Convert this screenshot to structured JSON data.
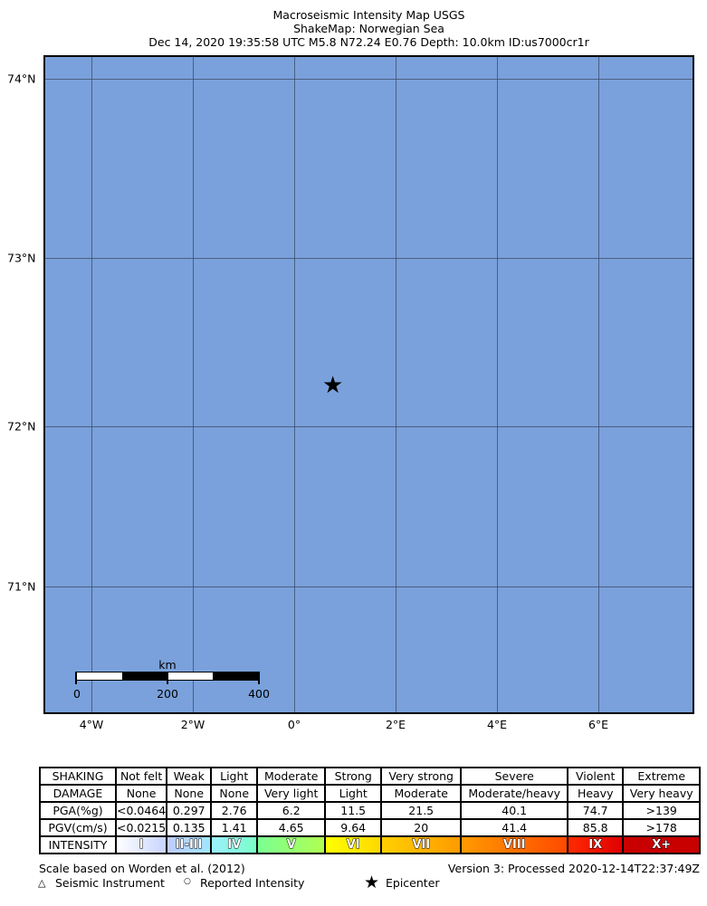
{
  "title": {
    "line1": "Macroseismic Intensity Map USGS",
    "line2": "ShakeMap: Norwegian Sea",
    "line3": "Dec 14, 2020 19:35:58 UTC M5.8 N72.24 E0.76 Depth: 10.0km ID:us7000cr1r"
  },
  "map": {
    "water_color": "#7aa1db",
    "lat_labels": [
      "74°N",
      "73°N",
      "72°N",
      "71°N"
    ],
    "lon_labels": [
      "4°W",
      "2°W",
      "0°",
      "2°E",
      "4°E",
      "6°E"
    ],
    "epicenter": {
      "lat": 72.24,
      "lon": 0.76,
      "icon": "star-icon",
      "symbol": "★"
    },
    "scale_bar": {
      "unit": "km",
      "labels": [
        "0",
        "200",
        "400"
      ]
    }
  },
  "legend": {
    "rows": [
      {
        "header": "SHAKING",
        "cells": [
          "Not felt",
          "Weak",
          "Light",
          "Moderate",
          "Strong",
          "Very strong",
          "Severe",
          "Violent",
          "Extreme"
        ]
      },
      {
        "header": "DAMAGE",
        "cells": [
          "None",
          "None",
          "None",
          "Very light",
          "Light",
          "Moderate",
          "Moderate/heavy",
          "Heavy",
          "Very heavy"
        ]
      },
      {
        "header": "PGA(%g)",
        "cells": [
          "<0.0464",
          "0.297",
          "2.76",
          "6.2",
          "11.5",
          "21.5",
          "40.1",
          "74.7",
          ">139"
        ]
      },
      {
        "header": "PGV(cm/s)",
        "cells": [
          "<0.0215",
          "0.135",
          "1.41",
          "4.65",
          "9.64",
          "20",
          "41.4",
          "85.8",
          ">178"
        ]
      }
    ],
    "intensity": {
      "header": "INTENSITY",
      "cells": [
        "I",
        "II-III",
        "IV",
        "V",
        "VI",
        "VII",
        "VIII",
        "IX",
        "X+"
      ],
      "colors": [
        [
          "#ffffff",
          "#c8d4ff"
        ],
        [
          "#bfccff",
          "#a0e6ff"
        ],
        [
          "#9bf0ff",
          "#7affc8"
        ],
        [
          "#7aff93",
          "#b0ff50"
        ],
        [
          "#ffff00",
          "#ffd800"
        ],
        [
          "#ffd000",
          "#ff9a00"
        ],
        [
          "#ff9a00",
          "#ff4a00"
        ],
        [
          "#ff2a00",
          "#e00000"
        ],
        [
          "#c80000",
          "#c80000"
        ]
      ]
    }
  },
  "footer": {
    "scale_note": "Scale based on Worden et al. (2012)",
    "version": "Version 3: Processed 2020-12-14T22:37:49Z",
    "seismic_instrument": "Seismic Instrument",
    "reported_intensity": "Reported Intensity",
    "epicenter": "Epicenter"
  }
}
